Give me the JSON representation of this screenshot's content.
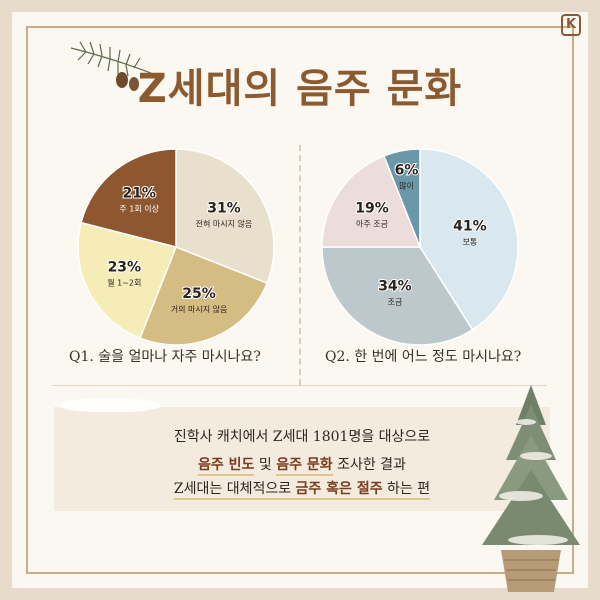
{
  "title": "Z세대의 음주 문화",
  "logo": "K",
  "chart_data": [
    {
      "type": "pie",
      "question": "Q1. 술을 얼마나 자주 마시나요?",
      "slices": [
        {
          "label": "전혀 마시지 않음",
          "value": 31,
          "display": "31%",
          "color": "#e8dfcd"
        },
        {
          "label": "거의 마시지 않음",
          "value": 25,
          "display": "25%",
          "color": "#d4bc83"
        },
        {
          "label": "월 1~2회",
          "value": 23,
          "display": "23%",
          "color": "#f6ecb8"
        },
        {
          "label": "주 1회 이상",
          "value": 21,
          "display": "21%",
          "color": "#8f572f"
        }
      ]
    },
    {
      "type": "pie",
      "question": "Q2. 한 번에 어느 정도 마시나요?",
      "slices": [
        {
          "label": "보통",
          "value": 41,
          "display": "41%",
          "color": "#d8e8ee"
        },
        {
          "label": "조금",
          "value": 34,
          "display": "34%",
          "color": "#bcc8cc"
        },
        {
          "label": "아주 조금",
          "value": 19,
          "display": "19%",
          "color": "#ecdcda"
        },
        {
          "label": "많이",
          "value": 6,
          "display": "6%",
          "color": "#6a98a8"
        }
      ]
    }
  ],
  "summary": {
    "line1": "진학사 캐치에서 Z세대 1801명을 대상으로",
    "line2_hl1": "음주 빈도",
    "line2_mid": " 및 ",
    "line2_hl2": "음주 문화",
    "line2_end": " 조사한 결과",
    "line3_start": "Z세대는 대체적으로 ",
    "line3_hl": "금주 혹은 절주",
    "line3_end": " 하는 편"
  }
}
